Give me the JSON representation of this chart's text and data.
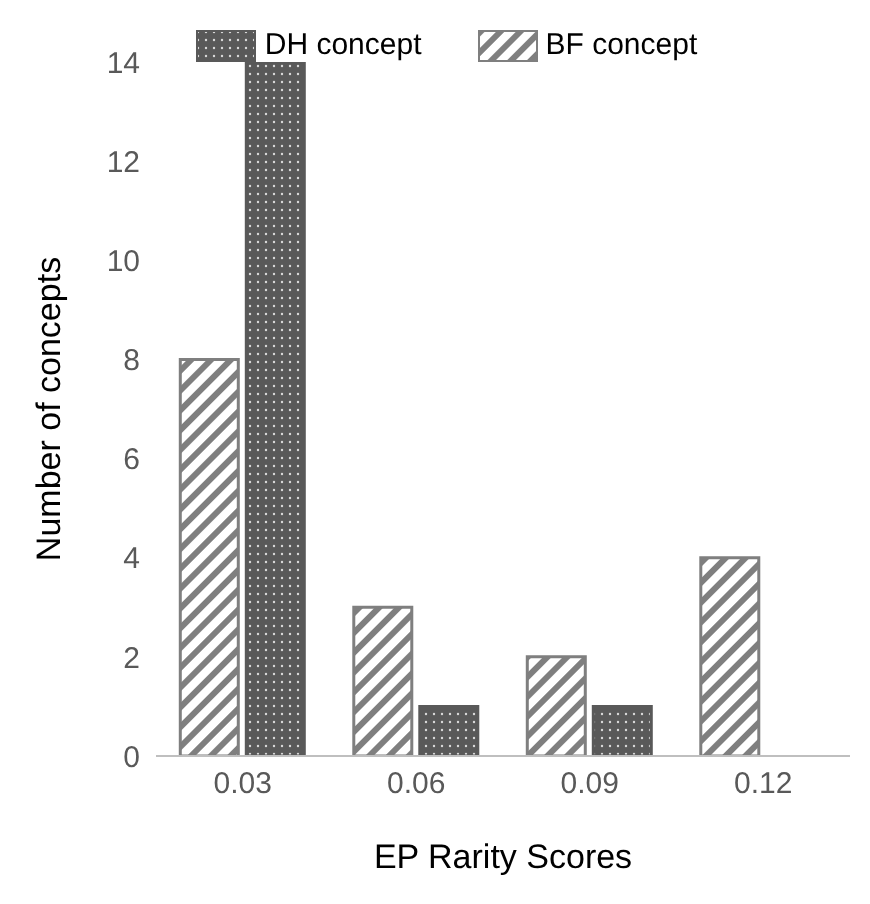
{
  "chart_data": {
    "type": "bar",
    "xlabel": "EP Rarity Scores",
    "ylabel": "Number of concepts",
    "categories": [
      "0.03",
      "0.06",
      "0.09",
      "0.12"
    ],
    "series": [
      {
        "name": "BF concept",
        "color": "#7f7f7f",
        "values": [
          8,
          3,
          2,
          4
        ]
      },
      {
        "name": "DH concept",
        "color": "#595959",
        "values": [
          14,
          1,
          1,
          0
        ]
      }
    ],
    "ylim": [
      0,
      14
    ],
    "yticks": [
      0,
      2,
      4,
      6,
      8,
      10,
      12,
      14
    ],
    "grid": false,
    "legend": "top"
  }
}
